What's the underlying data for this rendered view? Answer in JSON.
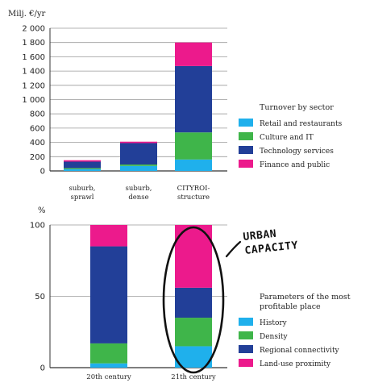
{
  "chart_data": [
    {
      "type": "bar",
      "stacked": true,
      "unit_label": "Milj. €/yr",
      "categories": [
        [
          "suburb,",
          "sprawl"
        ],
        [
          "suburb,",
          "dense"
        ],
        [
          "CITYROI-",
          "structure"
        ]
      ],
      "series": [
        {
          "name": "Retail and restaurants",
          "values": [
            25,
            70,
            160
          ]
        },
        {
          "name": "Culture and IT",
          "values": [
            15,
            20,
            380
          ]
        },
        {
          "name": "Technology services",
          "values": [
            90,
            300,
            930
          ]
        },
        {
          "name": "Finance and public",
          "values": [
            20,
            20,
            330
          ]
        }
      ],
      "ylim": [
        0,
        2000
      ],
      "yticks": [
        "0",
        "200",
        "400",
        "600",
        "800",
        "1 000",
        "1 200",
        "1 400",
        "1 600",
        "1 800",
        "2 000"
      ],
      "grid": true,
      "legend_title": "Turnover by sector",
      "legend_placement": "right"
    },
    {
      "type": "bar",
      "stacked": true,
      "unit_label": "%",
      "categories": [
        [
          "20th century"
        ],
        [
          "21th century"
        ]
      ],
      "series": [
        {
          "name": "History",
          "values": [
            3,
            15
          ]
        },
        {
          "name": "Density",
          "values": [
            14,
            20
          ]
        },
        {
          "name": "Regional connectivity",
          "values": [
            68,
            21
          ]
        },
        {
          "name": "Land-use proximity",
          "values": [
            15,
            44
          ]
        }
      ],
      "ylim": [
        0,
        100
      ],
      "yticks": [
        "0",
        "50",
        "100"
      ],
      "grid": true,
      "legend_title": [
        "Parameters of the most",
        "profitable place"
      ],
      "legend_placement": "right",
      "annotation": [
        "URBAN",
        "CAPACITY"
      ]
    }
  ],
  "colors": {
    "Retail and restaurants": "#1fb0ec",
    "Culture and IT": "#3fb54a",
    "Technology services": "#223f98",
    "Finance and public": "#ec1a8c",
    "History": "#1fb0ec",
    "Density": "#3fb54a",
    "Regional connectivity": "#223f98",
    "Land-use proximity": "#ec1a8c"
  }
}
